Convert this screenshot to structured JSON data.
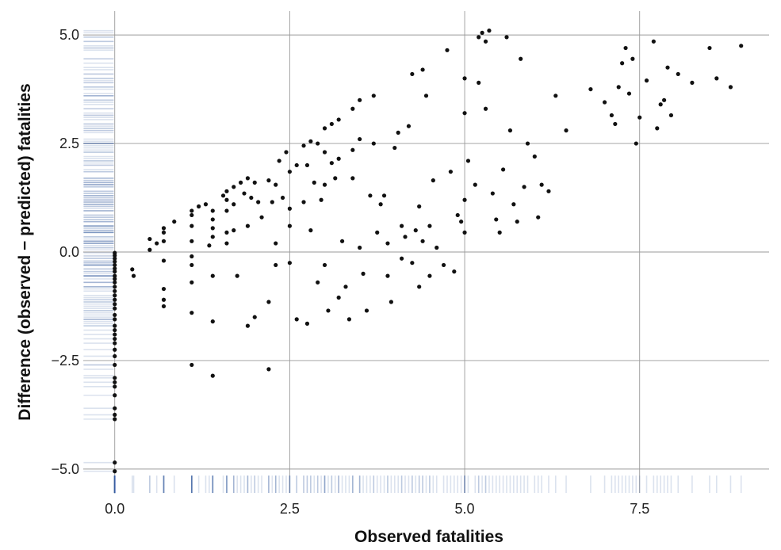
{
  "chart_data": {
    "type": "scatter",
    "title": "",
    "xlabel": "Observed fatalities",
    "ylabel": "Difference (observed − predicted) fatalities",
    "xlim": [
      -0.45,
      9.35
    ],
    "ylim": [
      -5.55,
      5.55
    ],
    "xticks": [
      0.0,
      2.5,
      5.0,
      7.5
    ],
    "yticks": [
      -5.0,
      -2.5,
      0.0,
      2.5,
      5.0
    ],
    "xtick_labels": [
      "0.0",
      "2.5",
      "5.0",
      "7.5"
    ],
    "ytick_labels": [
      "−5.0",
      "−2.5",
      "0.0",
      "2.5",
      "5.0"
    ],
    "grid": true,
    "rug": true,
    "colors": {
      "points": "#111111",
      "rug": "#3a5f9e",
      "grid": "#9a9a9a"
    },
    "points": [
      [
        0,
        -0.02
      ],
      [
        0,
        -0.08
      ],
      [
        0,
        -0.15
      ],
      [
        0,
        -0.22
      ],
      [
        0,
        -0.3
      ],
      [
        0,
        -0.38
      ],
      [
        0,
        -0.45
      ],
      [
        0,
        -0.55
      ],
      [
        0,
        -0.62
      ],
      [
        0,
        -0.7
      ],
      [
        0,
        -0.8
      ],
      [
        0,
        -0.9
      ],
      [
        0,
        -1.0
      ],
      [
        0,
        -1.1
      ],
      [
        0,
        -1.2
      ],
      [
        0,
        -1.3
      ],
      [
        0,
        -1.45
      ],
      [
        0,
        -1.55
      ],
      [
        0,
        -1.7
      ],
      [
        0,
        -1.8
      ],
      [
        0,
        -1.9
      ],
      [
        0,
        -2.0
      ],
      [
        0,
        -2.1
      ],
      [
        0,
        -2.25
      ],
      [
        0,
        -2.4
      ],
      [
        0,
        -2.6
      ],
      [
        0,
        -2.9
      ],
      [
        0,
        -3.0
      ],
      [
        0,
        -3.1
      ],
      [
        0,
        -3.3
      ],
      [
        0,
        -3.6
      ],
      [
        0,
        -3.75
      ],
      [
        0,
        -3.85
      ],
      [
        0,
        -4.85
      ],
      [
        0,
        -5.05
      ],
      [
        0.25,
        -0.4
      ],
      [
        0.27,
        -0.55
      ],
      [
        0.5,
        0.3
      ],
      [
        0.5,
        0.05
      ],
      [
        0.6,
        0.2
      ],
      [
        0.7,
        0.55
      ],
      [
        0.7,
        0.45
      ],
      [
        0.7,
        0.25
      ],
      [
        0.7,
        -0.2
      ],
      [
        0.7,
        -0.85
      ],
      [
        0.7,
        -1.1
      ],
      [
        0.7,
        -1.25
      ],
      [
        0.85,
        0.7
      ],
      [
        1.1,
        0.95
      ],
      [
        1.1,
        0.85
      ],
      [
        1.1,
        0.6
      ],
      [
        1.1,
        0.25
      ],
      [
        1.1,
        -0.1
      ],
      [
        1.1,
        -0.3
      ],
      [
        1.1,
        -0.7
      ],
      [
        1.1,
        -1.4
      ],
      [
        1.1,
        -2.6
      ],
      [
        1.2,
        1.05
      ],
      [
        1.3,
        1.1
      ],
      [
        1.35,
        0.15
      ],
      [
        1.4,
        0.95
      ],
      [
        1.4,
        0.75
      ],
      [
        1.4,
        0.55
      ],
      [
        1.4,
        0.35
      ],
      [
        1.4,
        -0.55
      ],
      [
        1.4,
        -1.6
      ],
      [
        1.4,
        -2.85
      ],
      [
        1.55,
        1.3
      ],
      [
        1.6,
        1.4
      ],
      [
        1.6,
        1.2
      ],
      [
        1.6,
        0.95
      ],
      [
        1.6,
        0.45
      ],
      [
        1.6,
        0.2
      ],
      [
        1.7,
        1.5
      ],
      [
        1.7,
        1.1
      ],
      [
        1.7,
        0.5
      ],
      [
        1.75,
        -0.55
      ],
      [
        1.8,
        1.6
      ],
      [
        1.85,
        1.35
      ],
      [
        1.9,
        1.7
      ],
      [
        1.9,
        -1.7
      ],
      [
        1.9,
        0.6
      ],
      [
        1.95,
        1.25
      ],
      [
        2.0,
        1.6
      ],
      [
        2.0,
        -1.5
      ],
      [
        2.05,
        1.15
      ],
      [
        2.1,
        0.8
      ],
      [
        2.2,
        1.65
      ],
      [
        2.2,
        -2.7
      ],
      [
        2.2,
        -1.15
      ],
      [
        2.25,
        1.15
      ],
      [
        2.3,
        1.55
      ],
      [
        2.3,
        0.2
      ],
      [
        2.3,
        -0.3
      ],
      [
        2.35,
        2.1
      ],
      [
        2.4,
        1.25
      ],
      [
        2.45,
        2.3
      ],
      [
        2.5,
        1.85
      ],
      [
        2.5,
        1.0
      ],
      [
        2.5,
        0.6
      ],
      [
        2.5,
        -0.25
      ],
      [
        2.6,
        2.0
      ],
      [
        2.6,
        -1.55
      ],
      [
        2.7,
        2.45
      ],
      [
        2.7,
        1.15
      ],
      [
        2.75,
        2.0
      ],
      [
        2.75,
        -1.65
      ],
      [
        2.8,
        2.55
      ],
      [
        2.8,
        0.5
      ],
      [
        2.85,
        1.6
      ],
      [
        2.9,
        2.5
      ],
      [
        2.9,
        -0.7
      ],
      [
        2.95,
        1.2
      ],
      [
        3.0,
        2.85
      ],
      [
        3.0,
        2.3
      ],
      [
        3.0,
        1.55
      ],
      [
        3.0,
        -0.3
      ],
      [
        3.05,
        -1.35
      ],
      [
        3.1,
        2.95
      ],
      [
        3.1,
        2.05
      ],
      [
        3.15,
        1.7
      ],
      [
        3.2,
        3.05
      ],
      [
        3.2,
        2.15
      ],
      [
        3.2,
        -1.05
      ],
      [
        3.25,
        0.25
      ],
      [
        3.3,
        -0.8
      ],
      [
        3.35,
        -1.55
      ],
      [
        3.4,
        3.3
      ],
      [
        3.4,
        2.35
      ],
      [
        3.4,
        1.7
      ],
      [
        3.5,
        3.5
      ],
      [
        3.5,
        2.6
      ],
      [
        3.5,
        0.1
      ],
      [
        3.55,
        -0.5
      ],
      [
        3.6,
        -1.35
      ],
      [
        3.65,
        1.3
      ],
      [
        3.7,
        2.5
      ],
      [
        3.7,
        3.6
      ],
      [
        3.75,
        0.45
      ],
      [
        3.8,
        1.1
      ],
      [
        3.85,
        1.3
      ],
      [
        3.9,
        0.2
      ],
      [
        3.9,
        -0.55
      ],
      [
        3.95,
        -1.15
      ],
      [
        4.0,
        2.4
      ],
      [
        4.05,
        2.75
      ],
      [
        4.1,
        0.6
      ],
      [
        4.1,
        -0.15
      ],
      [
        4.15,
        0.35
      ],
      [
        4.2,
        2.9
      ],
      [
        4.25,
        4.1
      ],
      [
        4.25,
        -0.25
      ],
      [
        4.3,
        0.5
      ],
      [
        4.35,
        1.05
      ],
      [
        4.35,
        -0.8
      ],
      [
        4.4,
        4.2
      ],
      [
        4.4,
        0.25
      ],
      [
        4.45,
        3.6
      ],
      [
        4.5,
        0.6
      ],
      [
        4.5,
        -0.55
      ],
      [
        4.55,
        1.65
      ],
      [
        4.6,
        0.1
      ],
      [
        4.7,
        -0.3
      ],
      [
        4.75,
        4.65
      ],
      [
        4.8,
        1.85
      ],
      [
        4.85,
        -0.45
      ],
      [
        4.9,
        0.85
      ],
      [
        4.95,
        0.7
      ],
      [
        5.0,
        4.0
      ],
      [
        5.0,
        3.2
      ],
      [
        5.0,
        1.2
      ],
      [
        5.0,
        0.45
      ],
      [
        5.05,
        2.1
      ],
      [
        5.15,
        1.55
      ],
      [
        5.2,
        4.95
      ],
      [
        5.2,
        3.9
      ],
      [
        5.25,
        5.05
      ],
      [
        5.3,
        3.3
      ],
      [
        5.3,
        4.85
      ],
      [
        5.35,
        5.1
      ],
      [
        5.4,
        1.35
      ],
      [
        5.45,
        0.75
      ],
      [
        5.5,
        0.45
      ],
      [
        5.55,
        1.9
      ],
      [
        5.6,
        4.95
      ],
      [
        5.65,
        2.8
      ],
      [
        5.7,
        1.1
      ],
      [
        5.75,
        0.7
      ],
      [
        5.8,
        4.45
      ],
      [
        5.85,
        1.5
      ],
      [
        5.9,
        2.5
      ],
      [
        6.0,
        2.2
      ],
      [
        6.05,
        0.8
      ],
      [
        6.1,
        1.55
      ],
      [
        6.2,
        1.4
      ],
      [
        6.3,
        3.6
      ],
      [
        6.45,
        2.8
      ],
      [
        6.8,
        3.75
      ],
      [
        7.0,
        3.45
      ],
      [
        7.1,
        3.15
      ],
      [
        7.15,
        2.95
      ],
      [
        7.2,
        3.8
      ],
      [
        7.25,
        4.35
      ],
      [
        7.3,
        4.7
      ],
      [
        7.35,
        3.65
      ],
      [
        7.4,
        4.45
      ],
      [
        7.45,
        2.5
      ],
      [
        7.5,
        3.1
      ],
      [
        7.6,
        3.95
      ],
      [
        7.7,
        4.85
      ],
      [
        7.75,
        2.85
      ],
      [
        7.8,
        3.4
      ],
      [
        7.85,
        3.5
      ],
      [
        7.9,
        4.25
      ],
      [
        7.95,
        3.15
      ],
      [
        8.05,
        4.1
      ],
      [
        8.25,
        3.9
      ],
      [
        8.5,
        4.7
      ],
      [
        8.6,
        4.0
      ],
      [
        8.8,
        3.8
      ],
      [
        8.95,
        4.75
      ]
    ]
  }
}
